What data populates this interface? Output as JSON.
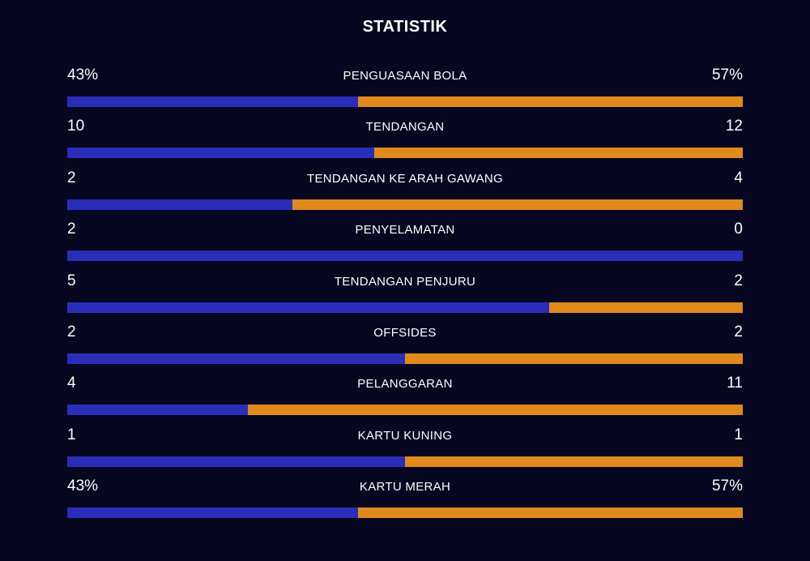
{
  "title": "STATISTIK",
  "colors": {
    "background": "#070722",
    "home": "#2a2db8",
    "away": "#e08a1e",
    "text": "#ffffff"
  },
  "stats": [
    {
      "label": "PENGUASAAN BOLA",
      "left": "43%",
      "right": "57%",
      "home_share": 0.43
    },
    {
      "label": "TENDANGAN",
      "left": "10",
      "right": "12",
      "home_share": 0.455
    },
    {
      "label": "TENDANGAN KE ARAH GAWANG",
      "left": "2",
      "right": "4",
      "home_share": 0.333
    },
    {
      "label": "PENYELAMATAN",
      "left": "2",
      "right": "0",
      "home_share": 1.0
    },
    {
      "label": "TENDANGAN PENJURU",
      "left": "5",
      "right": "2",
      "home_share": 0.714
    },
    {
      "label": "OFFSIDES",
      "left": "2",
      "right": "2",
      "home_share": 0.5
    },
    {
      "label": "PELANGGARAN",
      "left": "4",
      "right": "11",
      "home_share": 0.267
    },
    {
      "label": "KARTU KUNING",
      "left": "1",
      "right": "1",
      "home_share": 0.5
    },
    {
      "label": "KARTU MERAH",
      "left": "43%",
      "right": "57%",
      "home_share": 0.43
    }
  ]
}
